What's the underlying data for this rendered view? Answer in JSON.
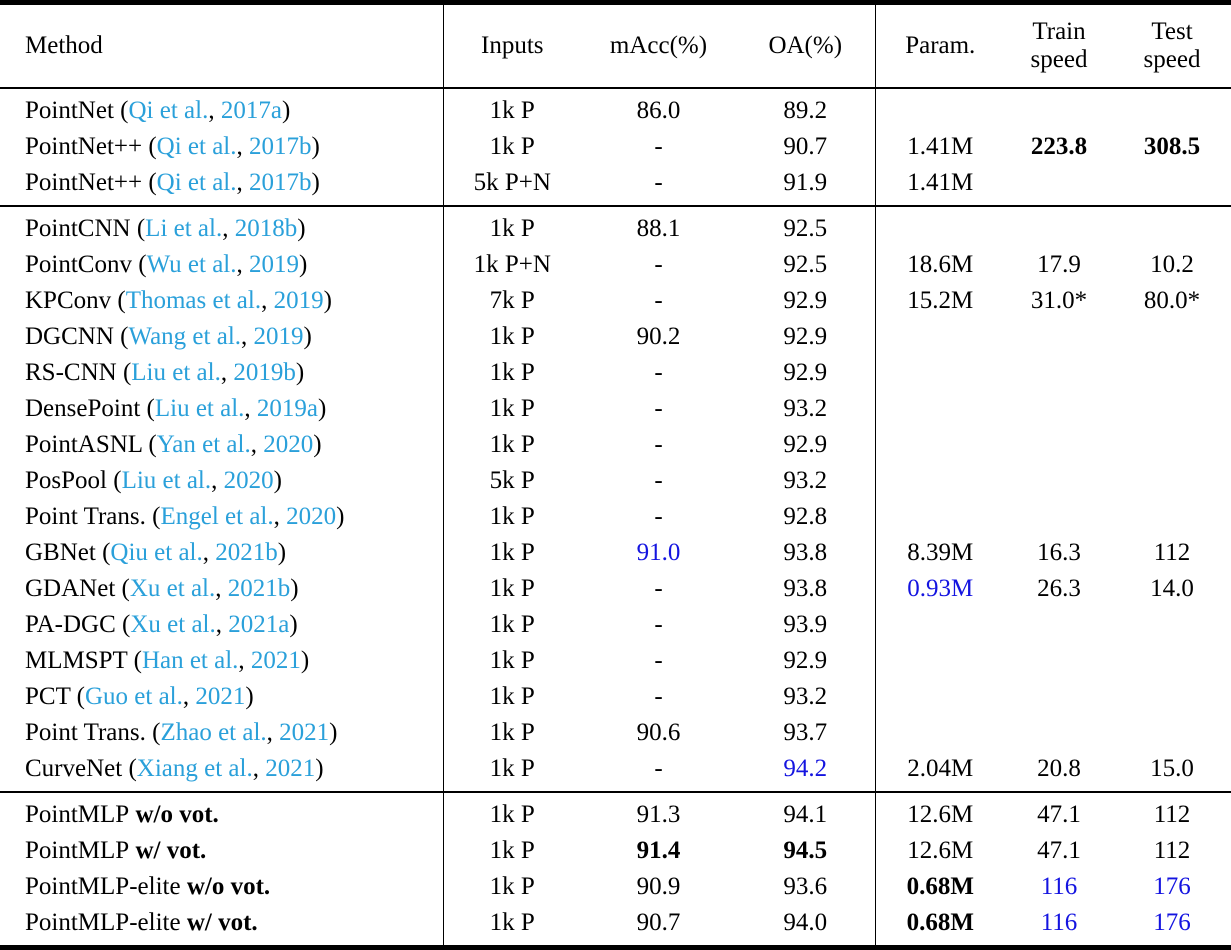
{
  "colors": {
    "citation_link": "#2AA0DA",
    "highlight_blue": "#1414E0",
    "text": "#000000"
  },
  "header": {
    "method": "Method",
    "inputs": "Inputs",
    "macc": "mAcc(%)",
    "oa": "OA(%)",
    "param": "Param.",
    "train": "Train\nspeed",
    "test": "Test\nspeed"
  },
  "sections": [
    {
      "name": "pointnet-baselines",
      "rows": [
        {
          "method": "PointNet",
          "author": "Qi et al.",
          "year": "2017a",
          "suffix": "",
          "inputs": "1k P",
          "macc": "86.0",
          "oa": "89.2",
          "param": "",
          "train": "",
          "test": "",
          "em": {}
        },
        {
          "method": "PointNet++",
          "author": "Qi et al.",
          "year": "2017b",
          "suffix": "",
          "inputs": "1k P",
          "macc": "-",
          "oa": "90.7",
          "param": "1.41M",
          "train": "223.8",
          "test": "308.5",
          "em": {
            "train": "bold",
            "test": "bold"
          }
        },
        {
          "method": "PointNet++",
          "author": "Qi et al.",
          "year": "2017b",
          "suffix": "",
          "inputs": "5k P+N",
          "macc": "-",
          "oa": "91.9",
          "param": "1.41M",
          "train": "",
          "test": "",
          "em": {}
        }
      ]
    },
    {
      "name": "prior-methods",
      "rows": [
        {
          "method": "PointCNN",
          "author": "Li et al.",
          "year": "2018b",
          "suffix": "",
          "inputs": "1k P",
          "macc": "88.1",
          "oa": "92.5",
          "param": "",
          "train": "",
          "test": "",
          "em": {}
        },
        {
          "method": "PointConv",
          "author": "Wu et al.",
          "year": "2019",
          "suffix": "",
          "inputs": "1k P+N",
          "macc": "-",
          "oa": "92.5",
          "param": "18.6M",
          "train": "17.9",
          "test": "10.2",
          "em": {}
        },
        {
          "method": "KPConv",
          "author": "Thomas et al.",
          "year": "2019",
          "suffix": "",
          "inputs": "7k P",
          "macc": "-",
          "oa": "92.9",
          "param": "15.2M",
          "train": "31.0*",
          "test": "80.0*",
          "em": {}
        },
        {
          "method": "DGCNN",
          "author": "Wang et al.",
          "year": "2019",
          "suffix": "",
          "inputs": "1k P",
          "macc": "90.2",
          "oa": "92.9",
          "param": "",
          "train": "",
          "test": "",
          "em": {}
        },
        {
          "method": "RS-CNN",
          "author": "Liu et al.",
          "year": "2019b",
          "suffix": "",
          "inputs": "1k P",
          "macc": "-",
          "oa": "92.9",
          "param": "",
          "train": "",
          "test": "",
          "em": {}
        },
        {
          "method": "DensePoint",
          "author": "Liu et al.",
          "year": "2019a",
          "suffix": "",
          "inputs": "1k P",
          "macc": "-",
          "oa": "93.2",
          "param": "",
          "train": "",
          "test": "",
          "em": {}
        },
        {
          "method": "PointASNL",
          "author": "Yan et al.",
          "year": "2020",
          "suffix": "",
          "inputs": "1k P",
          "macc": "-",
          "oa": "92.9",
          "param": "",
          "train": "",
          "test": "",
          "em": {}
        },
        {
          "method": "PosPool",
          "author": "Liu et al.",
          "year": "2020",
          "suffix": "",
          "inputs": "5k P",
          "macc": "-",
          "oa": "93.2",
          "param": "",
          "train": "",
          "test": "",
          "em": {}
        },
        {
          "method": "Point Trans.",
          "author": "Engel et al.",
          "year": "2020",
          "suffix": "",
          "inputs": "1k P",
          "macc": "-",
          "oa": "92.8",
          "param": "",
          "train": "",
          "test": "",
          "em": {}
        },
        {
          "method": "GBNet",
          "author": "Qiu et al.",
          "year": "2021b",
          "suffix": "",
          "inputs": "1k P",
          "macc": "91.0",
          "oa": "93.8",
          "param": "8.39M",
          "train": "16.3",
          "test": "112",
          "em": {
            "macc": "blue"
          }
        },
        {
          "method": "GDANet",
          "author": "Xu et al.",
          "year": "2021b",
          "suffix": "",
          "inputs": "1k P",
          "macc": "-",
          "oa": "93.8",
          "param": "0.93M",
          "train": "26.3",
          "test": "14.0",
          "em": {
            "param": "blue"
          }
        },
        {
          "method": "PA-DGC",
          "author": "Xu et al.",
          "year": "2021a",
          "suffix": "",
          "inputs": "1k P",
          "macc": "-",
          "oa": "93.9",
          "param": "",
          "train": "",
          "test": "",
          "em": {}
        },
        {
          "method": "MLMSPT",
          "author": "Han et al.",
          "year": "2021",
          "suffix": "",
          "inputs": "1k P",
          "macc": "-",
          "oa": "92.9",
          "param": "",
          "train": "",
          "test": "",
          "em": {}
        },
        {
          "method": "PCT",
          "author": "Guo et al.",
          "year": "2021",
          "suffix": "",
          "inputs": "1k P",
          "macc": "-",
          "oa": "93.2",
          "param": "",
          "train": "",
          "test": "",
          "em": {}
        },
        {
          "method": "Point Trans.",
          "author": "Zhao et al.",
          "year": "2021",
          "suffix": "",
          "inputs": "1k P",
          "macc": "90.6",
          "oa": "93.7",
          "param": "",
          "train": "",
          "test": "",
          "em": {}
        },
        {
          "method": "CurveNet",
          "author": "Xiang et al.",
          "year": "2021",
          "suffix": "",
          "inputs": "1k P",
          "macc": "-",
          "oa": "94.2",
          "param": "2.04M",
          "train": "20.8",
          "test": "15.0",
          "em": {
            "oa": "blue"
          }
        }
      ]
    },
    {
      "name": "pointmlp-ours",
      "rows": [
        {
          "method": "PointMLP",
          "author": "",
          "year": "",
          "suffix": "w/o vot.",
          "inputs": "1k P",
          "macc": "91.3",
          "oa": "94.1",
          "param": "12.6M",
          "train": "47.1",
          "test": "112",
          "em": {}
        },
        {
          "method": "PointMLP",
          "author": "",
          "year": "",
          "suffix": "w/ vot.",
          "inputs": "1k P",
          "macc": "91.4",
          "oa": "94.5",
          "param": "12.6M",
          "train": "47.1",
          "test": "112",
          "em": {
            "macc": "bold",
            "oa": "bold"
          }
        },
        {
          "method": "PointMLP-elite",
          "author": "",
          "year": "",
          "suffix": "w/o vot.",
          "inputs": "1k P",
          "macc": "90.9",
          "oa": "93.6",
          "param": "0.68M",
          "train": "116",
          "test": "176",
          "em": {
            "param": "bold",
            "train": "blue",
            "test": "blue"
          }
        },
        {
          "method": "PointMLP-elite",
          "author": "",
          "year": "",
          "suffix": "w/ vot.",
          "inputs": "1k P",
          "macc": "90.7",
          "oa": "94.0",
          "param": "0.68M",
          "train": "116",
          "test": "176",
          "em": {
            "param": "bold",
            "train": "blue",
            "test": "blue"
          }
        }
      ]
    }
  ]
}
